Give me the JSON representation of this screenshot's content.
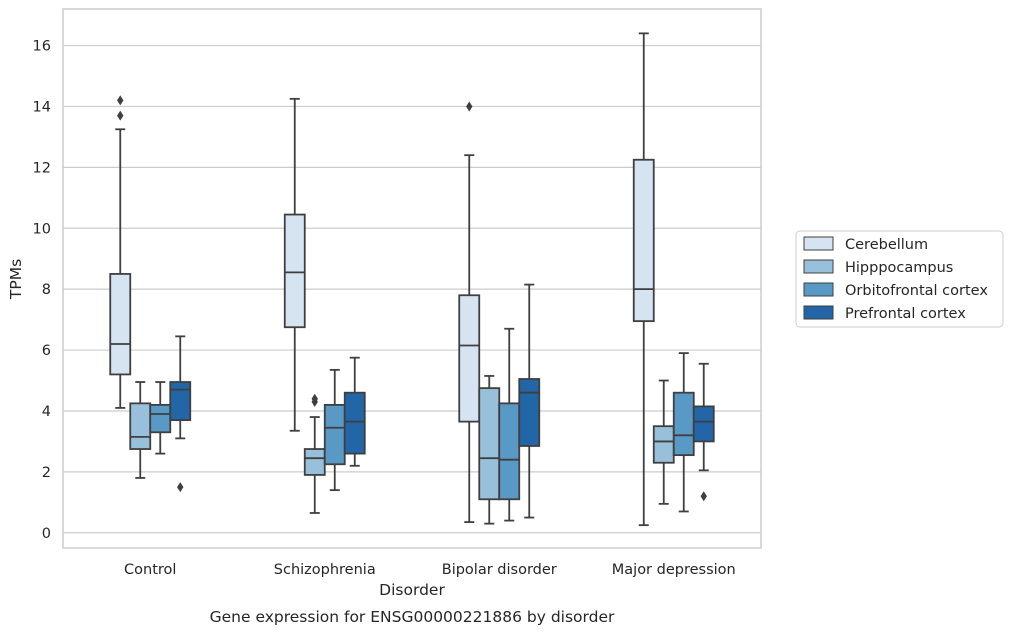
{
  "caption": "Gene expression for ENSG00000221886 by disorder",
  "chart_data": {
    "type": "box",
    "title": "",
    "xlabel": "Disorder",
    "ylabel": "TPMs",
    "ylim": [
      -0.5,
      17.2
    ],
    "yticks": [
      0,
      2,
      4,
      6,
      8,
      10,
      12,
      14,
      16
    ],
    "grid": "horizontal",
    "legend_position": "right",
    "categories": [
      "Control",
      "Schizophrenia",
      "Bipolar disorder",
      "Major depression"
    ],
    "series": [
      {
        "name": "Cerebellum",
        "color": "#d6e4f2",
        "boxes": [
          {
            "whislo": 4.1,
            "q1": 5.2,
            "med": 6.2,
            "q3": 8.5,
            "whishi": 13.25,
            "fliers": [
              13.7,
              14.2
            ]
          },
          {
            "whislo": 3.35,
            "q1": 6.75,
            "med": 8.55,
            "q3": 10.45,
            "whishi": 14.25,
            "fliers": []
          },
          {
            "whislo": 0.35,
            "q1": 3.65,
            "med": 6.15,
            "q3": 7.8,
            "whishi": 12.4,
            "fliers": [
              14.0
            ]
          },
          {
            "whislo": 0.25,
            "q1": 6.95,
            "med": 8.0,
            "q3": 12.25,
            "whishi": 16.4,
            "fliers": []
          }
        ]
      },
      {
        "name": "Hipppocampus",
        "color": "#99c0db",
        "boxes": [
          {
            "whislo": 1.8,
            "q1": 2.75,
            "med": 3.15,
            "q3": 4.25,
            "whishi": 4.95,
            "fliers": []
          },
          {
            "whislo": 0.65,
            "q1": 1.9,
            "med": 2.45,
            "q3": 2.75,
            "whishi": 3.8,
            "fliers": [
              4.3,
              4.4
            ]
          },
          {
            "whislo": 0.3,
            "q1": 1.1,
            "med": 2.45,
            "q3": 4.75,
            "whishi": 5.15,
            "fliers": []
          },
          {
            "whislo": 0.95,
            "q1": 2.3,
            "med": 3.0,
            "q3": 3.5,
            "whishi": 5.0,
            "fliers": []
          }
        ]
      },
      {
        "name": "Orbitofrontal cortex",
        "color": "#5899c6",
        "boxes": [
          {
            "whislo": 2.6,
            "q1": 3.3,
            "med": 3.9,
            "q3": 4.2,
            "whishi": 4.95,
            "fliers": []
          },
          {
            "whislo": 1.4,
            "q1": 2.25,
            "med": 3.45,
            "q3": 4.2,
            "whishi": 5.35,
            "fliers": []
          },
          {
            "whislo": 0.4,
            "q1": 1.1,
            "med": 2.4,
            "q3": 4.25,
            "whishi": 6.7,
            "fliers": []
          },
          {
            "whislo": 0.7,
            "q1": 2.55,
            "med": 3.2,
            "q3": 4.6,
            "whishi": 5.9,
            "fliers": []
          }
        ]
      },
      {
        "name": "Prefrontal cortex",
        "color": "#2266a8",
        "boxes": [
          {
            "whislo": 3.1,
            "q1": 3.7,
            "med": 4.7,
            "q3": 4.95,
            "whishi": 6.45,
            "fliers": [
              1.5
            ]
          },
          {
            "whislo": 2.2,
            "q1": 2.6,
            "med": 3.65,
            "q3": 4.6,
            "whishi": 5.75,
            "fliers": []
          },
          {
            "whislo": 0.5,
            "q1": 2.85,
            "med": 4.6,
            "q3": 5.05,
            "whishi": 8.15,
            "fliers": []
          },
          {
            "whislo": 2.05,
            "q1": 3.0,
            "med": 3.65,
            "q3": 4.15,
            "whishi": 5.55,
            "fliers": [
              1.2
            ]
          }
        ]
      }
    ]
  }
}
